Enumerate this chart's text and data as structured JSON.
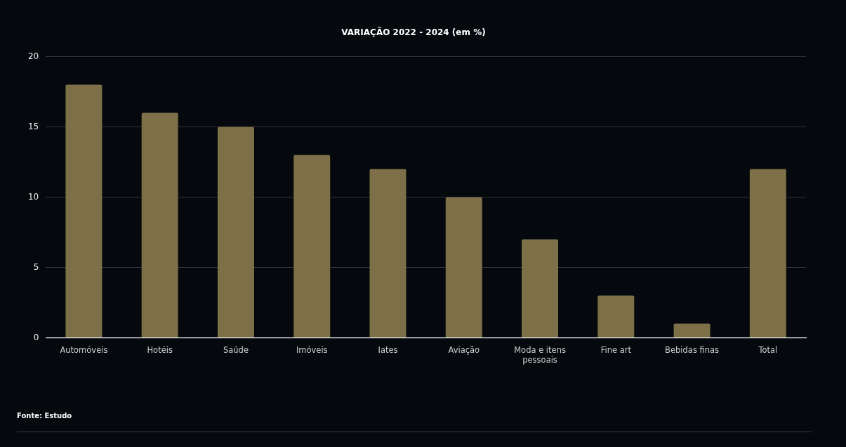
{
  "chart_data": {
    "type": "bar",
    "title": "VARIAÇÃO 2022 - 2024 (em %)",
    "categories": [
      "Automóveis",
      "Hotéis",
      "Saúde",
      "Imóveis",
      "Iates",
      "Aviação",
      "Moda e itens pessoais",
      "Fine art",
      "Bebidas finas",
      "Total"
    ],
    "values": [
      18,
      16,
      15,
      13,
      12,
      10,
      7,
      3,
      1,
      12
    ],
    "color": "#7d7048",
    "ylim": [
      0,
      20
    ],
    "yticks": [
      0,
      5,
      10,
      15,
      20
    ],
    "grid": "y",
    "annotations": [
      "Fonte: Estudo"
    ]
  }
}
